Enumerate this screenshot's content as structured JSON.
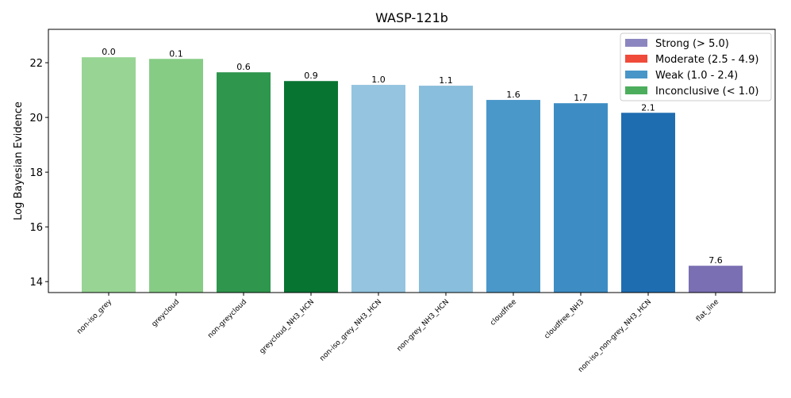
{
  "chart_data": {
    "type": "bar",
    "title": "WASP-121b",
    "y_label": "Log Bayesian Evidence",
    "categories": [
      "non-iso_grey",
      "greycloud",
      "non-greycloud",
      "greycloud_NH3_HCN",
      "non-iso_grey_NH3_HCN",
      "non-grey_NH3_HCN",
      "cloudfree",
      "cloudfree_NH3",
      "non-iso_non-grey_NH3_HCN",
      "flat_line"
    ],
    "values": [
      22.2,
      22.14,
      21.65,
      21.33,
      21.19,
      21.16,
      20.64,
      20.52,
      20.17,
      14.58
    ],
    "bar_labels": [
      "0.0",
      "0.1",
      "0.6",
      "0.9",
      "1.0",
      "1.1",
      "1.6",
      "1.7",
      "2.1",
      "7.6"
    ],
    "colors": [
      "#98d594",
      "#86cc85",
      "#2e964d",
      "#087432",
      "#94c4df",
      "#89bedc",
      "#4a98c9",
      "#3d8dc4",
      "#1f6db1",
      "#7b6fb3"
    ],
    "ylim": [
      13.6,
      23.22
    ],
    "yticks": [
      14,
      16,
      18,
      20,
      22
    ],
    "legend": {
      "position": "upper right",
      "entries": [
        {
          "name": "Strong (> 5.0)",
          "color": "#8c86c0"
        },
        {
          "name": "Moderate (2.5 - 4.9)",
          "color": "#f04a3a"
        },
        {
          "name": "Weak (1.0 - 2.4)",
          "color": "#4896c8"
        },
        {
          "name": "Inconclusive (< 1.0)",
          "color": "#4cae5c"
        }
      ]
    }
  }
}
